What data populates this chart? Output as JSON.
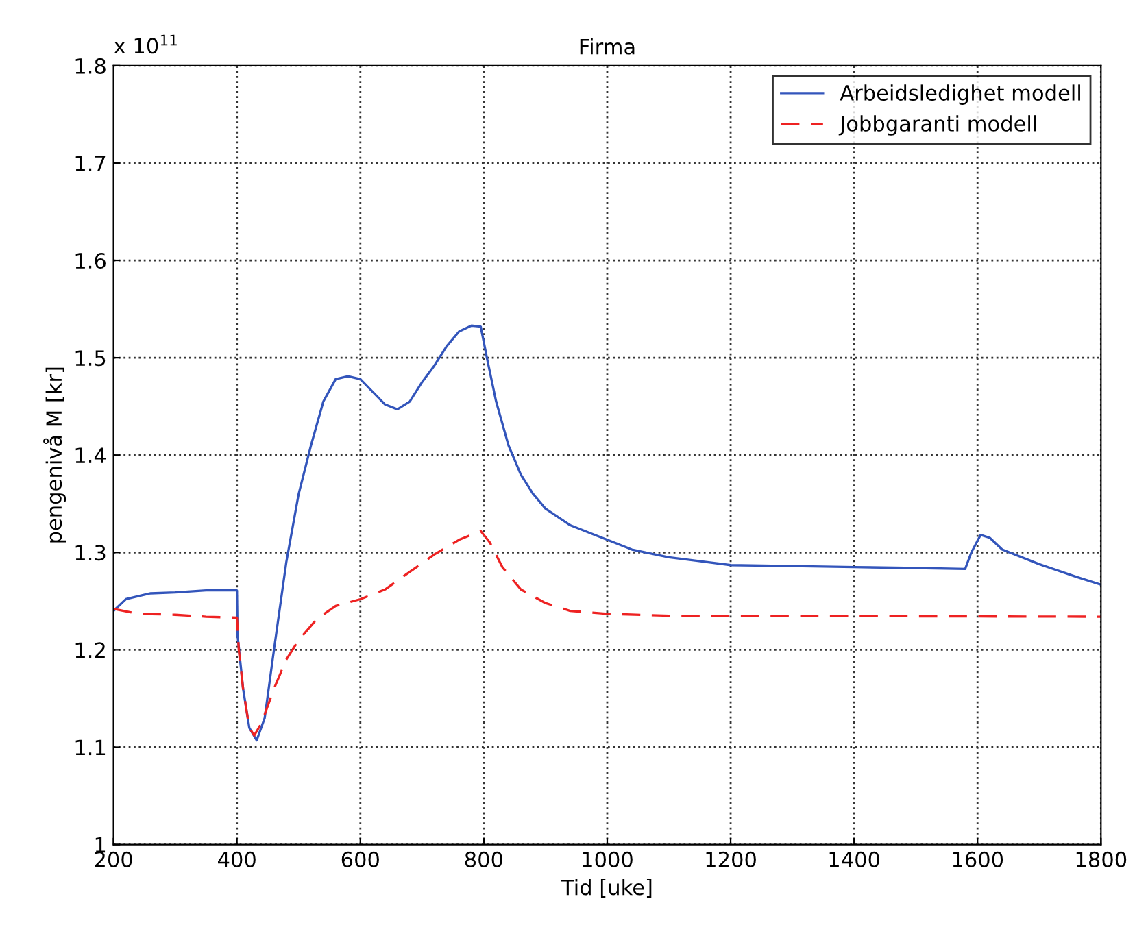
{
  "chart_data": {
    "type": "line",
    "title": "Firma",
    "xlabel": "Tid [uke]",
    "ylabel": "pengenivå M [kr]",
    "annotations": [
      "x 10$^{11}$"
    ],
    "xlim": [
      200,
      1800
    ],
    "xticks": [
      200,
      400,
      600,
      800,
      1000,
      1200,
      1400,
      1600,
      1800
    ],
    "ylim": [
      1,
      1.8
    ],
    "yticks": [
      1,
      1.1,
      1.2,
      1.3,
      1.4,
      1.5,
      1.6,
      1.7,
      1.8
    ],
    "grid": true,
    "legend": "top right",
    "series": [
      {
        "name": "Arbeidsledighet modell",
        "color": "#3355bb",
        "line_style": "solid",
        "x": [
          200,
          220,
          260,
          300,
          350,
          400,
          401,
          410,
          420,
          432,
          445,
          460,
          480,
          500,
          520,
          540,
          560,
          580,
          600,
          620,
          640,
          660,
          680,
          700,
          720,
          740,
          760,
          780,
          795,
          805,
          820,
          840,
          860,
          880,
          900,
          940,
          980,
          1000,
          1040,
          1100,
          1200,
          1300,
          1400,
          1500,
          1580,
          1590,
          1605,
          1620,
          1640,
          1700,
          1760,
          1800
        ],
        "values": [
          1.24,
          1.252,
          1.258,
          1.259,
          1.261,
          1.261,
          1.215,
          1.16,
          1.12,
          1.107,
          1.13,
          1.2,
          1.29,
          1.36,
          1.41,
          1.455,
          1.478,
          1.481,
          1.478,
          1.465,
          1.452,
          1.447,
          1.455,
          1.475,
          1.492,
          1.512,
          1.527,
          1.533,
          1.532,
          1.5,
          1.455,
          1.41,
          1.38,
          1.36,
          1.345,
          1.328,
          1.318,
          1.313,
          1.303,
          1.295,
          1.287,
          1.286,
          1.285,
          1.284,
          1.283,
          1.3,
          1.318,
          1.315,
          1.303,
          1.288,
          1.275,
          1.267
        ]
      },
      {
        "name": "Jobbgaranti modell",
        "color": "#ee2222",
        "line_style": "dashed",
        "x": [
          200,
          240,
          300,
          350,
          400,
          403,
          410,
          420,
          428,
          440,
          460,
          480,
          500,
          530,
          560,
          600,
          640,
          680,
          720,
          760,
          795,
          810,
          830,
          860,
          900,
          940,
          1000,
          1100,
          1800
        ],
        "values": [
          1.242,
          1.237,
          1.236,
          1.234,
          1.233,
          1.2,
          1.16,
          1.12,
          1.112,
          1.125,
          1.16,
          1.19,
          1.21,
          1.232,
          1.245,
          1.252,
          1.262,
          1.28,
          1.298,
          1.313,
          1.322,
          1.31,
          1.285,
          1.262,
          1.248,
          1.24,
          1.237,
          1.235,
          1.234
        ]
      }
    ]
  }
}
